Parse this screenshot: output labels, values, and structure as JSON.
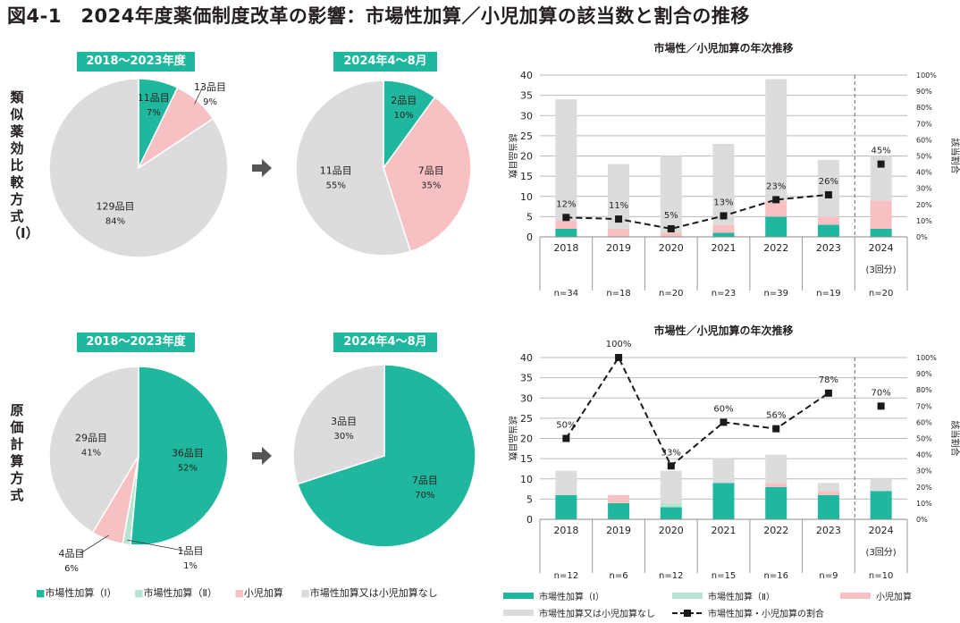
{
  "title": "図4-1　2024年度薬価制度改革の影響：市場性加算／小児加算の該当数と割合の推移",
  "colors": {
    "market1": "#1fb89e",
    "market2": "#b7e3d3",
    "pediatric": "#f7c0c3",
    "none": "#dcdcdc",
    "ratio": "#1a1a1a",
    "header": "#1fb89e"
  },
  "rows": [
    {
      "label": "類似薬効比較方式（Ⅰ）",
      "header_left": "2018〜2023年度",
      "header_right": "2024年4〜8月"
    },
    {
      "label": "原価計算方式",
      "header_left": "2018〜2023年度",
      "header_right": "2024年4〜8月"
    }
  ],
  "pie_legend": [
    "市場性加算（Ⅰ）",
    "市場性加算（Ⅱ）",
    "小児加算",
    "市場性加算又は小児加算なし"
  ],
  "pie_legend_markers": [
    "■",
    "■",
    "■",
    "■"
  ],
  "bar_legend": [
    "市場性加算（Ⅰ）",
    "市場性加算（Ⅱ）",
    "小児加算",
    "市場性加算又は小児加算なし",
    "市場性加算・小児加算の割合"
  ],
  "chart_data": [
    {
      "type": "pie",
      "id": "pie-similar-2018-2023",
      "slices": [
        {
          "name": "市場性加算（Ⅰ）",
          "count_label": "11品目",
          "pct_label": "7%",
          "value": 11
        },
        {
          "name": "小児加算",
          "count_label": "13品目",
          "pct_label": "9%",
          "value": 13
        },
        {
          "name": "市場性加算又は小児加算なし",
          "count_label": "129品目",
          "pct_label": "84%",
          "value": 129
        }
      ]
    },
    {
      "type": "pie",
      "id": "pie-similar-2024",
      "slices": [
        {
          "name": "市場性加算（Ⅰ）",
          "count_label": "2品目",
          "pct_label": "10%",
          "value": 2
        },
        {
          "name": "小児加算",
          "count_label": "7品目",
          "pct_label": "35%",
          "value": 7
        },
        {
          "name": "市場性加算又は小児加算なし",
          "count_label": "11品目",
          "pct_label": "55%",
          "value": 11
        }
      ]
    },
    {
      "type": "pie",
      "id": "pie-cost-2018-2023",
      "slices": [
        {
          "name": "市場性加算（Ⅰ）",
          "count_label": "36品目",
          "pct_label": "52%",
          "value": 36
        },
        {
          "name": "市場性加算（Ⅱ）",
          "count_label": "1品目",
          "pct_label": "1%",
          "value": 1
        },
        {
          "name": "小児加算",
          "count_label": "4品目",
          "pct_label": "6%",
          "value": 4
        },
        {
          "name": "市場性加算又は小児加算なし",
          "count_label": "29品目",
          "pct_label": "41%",
          "value": 29
        }
      ]
    },
    {
      "type": "pie",
      "id": "pie-cost-2024",
      "slices": [
        {
          "name": "市場性加算（Ⅰ）",
          "count_label": "7品目",
          "pct_label": "70%",
          "value": 7
        },
        {
          "name": "市場性加算又は小児加算なし",
          "count_label": "3品目",
          "pct_label": "30%",
          "value": 3
        }
      ]
    },
    {
      "type": "bar",
      "id": "bar-similar",
      "title": "市場性／小児加算の年次推移",
      "ylabel": "該当品目数",
      "y2label": "該当割合",
      "ylim": [
        0,
        40
      ],
      "yticks": [
        0,
        5,
        10,
        15,
        20,
        25,
        30,
        35,
        40
      ],
      "y2lim": [
        0,
        100
      ],
      "y2ticks": [
        "0%",
        "10%",
        "20%",
        "30%",
        "40%",
        "50%",
        "60%",
        "70%",
        "80%",
        "90%",
        "100%"
      ],
      "categories": [
        "2018",
        "2019",
        "2020",
        "2021",
        "2022",
        "2023",
        "2024"
      ],
      "sublabels": [
        "",
        "",
        "",
        "",
        "",
        "",
        "(3回分)"
      ],
      "n_labels": [
        "n=34",
        "n=18",
        "n=20",
        "n=23",
        "n=39",
        "n=19",
        "n=20"
      ],
      "series": [
        {
          "name": "市場性加算（Ⅰ）",
          "values": [
            2,
            0,
            0,
            1,
            5,
            3,
            2
          ]
        },
        {
          "name": "市場性加算（Ⅱ）",
          "values": [
            0,
            0,
            0,
            0,
            0,
            0,
            0
          ]
        },
        {
          "name": "小児加算",
          "values": [
            2,
            2,
            1,
            2,
            4,
            2,
            7
          ]
        },
        {
          "name": "市場性加算又は小児加算なし",
          "values": [
            30,
            16,
            19,
            20,
            30,
            14,
            11
          ]
        }
      ],
      "ratio": {
        "name": "市場性加算・小児加算の割合",
        "values": [
          12,
          11,
          5,
          13,
          23,
          26,
          45
        ],
        "labels": [
          "12%",
          "11%",
          "5%",
          "13%",
          "23%",
          "26%",
          "45%"
        ]
      }
    },
    {
      "type": "bar",
      "id": "bar-cost",
      "title": "市場性／小児加算の年次推移",
      "ylabel": "該当品目数",
      "y2label": "該当割合",
      "ylim": [
        0,
        40
      ],
      "yticks": [
        0,
        5,
        10,
        15,
        20,
        25,
        30,
        35,
        40
      ],
      "y2lim": [
        0,
        100
      ],
      "y2ticks": [
        "0%",
        "10%",
        "20%",
        "30%",
        "40%",
        "50%",
        "60%",
        "70%",
        "80%",
        "90%",
        "100%"
      ],
      "categories": [
        "2018",
        "2019",
        "2020",
        "2021",
        "2022",
        "2023",
        "2024"
      ],
      "sublabels": [
        "",
        "",
        "",
        "",
        "",
        "",
        "(3回分)"
      ],
      "n_labels": [
        "n=12",
        "n=6",
        "n=12",
        "n=15",
        "n=16",
        "n=9",
        "n=10"
      ],
      "series": [
        {
          "name": "市場性加算（Ⅰ）",
          "values": [
            6,
            4,
            3,
            9,
            8,
            6,
            7
          ]
        },
        {
          "name": "市場性加算（Ⅱ）",
          "values": [
            0,
            0,
            1,
            0,
            0,
            0,
            0
          ]
        },
        {
          "name": "小児加算",
          "values": [
            0,
            2,
            0,
            0,
            1,
            1,
            0
          ]
        },
        {
          "name": "市場性加算又は小児加算なし",
          "values": [
            6,
            0,
            8,
            6,
            7,
            2,
            3
          ]
        }
      ],
      "ratio": {
        "name": "市場性加算・小児加算の割合",
        "values": [
          50,
          100,
          33,
          60,
          56,
          78,
          70
        ],
        "labels": [
          "50%",
          "100%",
          "33%",
          "60%",
          "56%",
          "78%",
          "70%"
        ]
      }
    }
  ]
}
